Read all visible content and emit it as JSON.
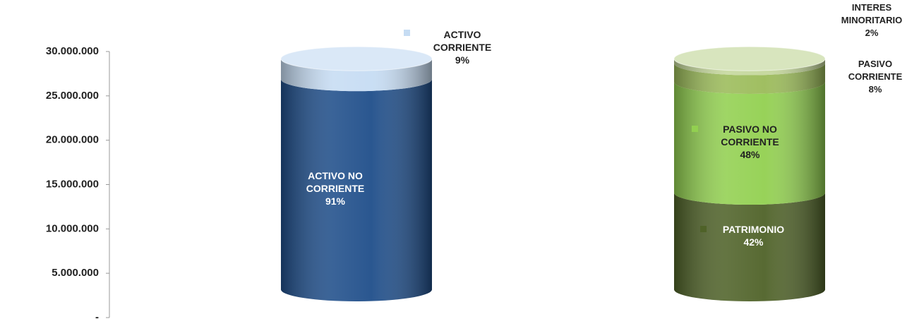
{
  "chart_data": {
    "type": "stacked-cylinder",
    "categories": [
      null,
      null
    ],
    "series": [
      {
        "name": "ACTIVO NO CORRIENTE",
        "percent": "91%",
        "color": "#1f4e8a",
        "values": [
          23700000,
          null
        ]
      },
      {
        "name": "ACTIVO CORRIENTE",
        "percent": "9%",
        "color": "#c6dcf3",
        "values": [
          2300000,
          null
        ]
      },
      {
        "name": "PATRIMONIO",
        "percent": "42%",
        "color": "#4f6228",
        "values": [
          null,
          10900000
        ]
      },
      {
        "name": "PASIVO NO CORRIENTE",
        "percent": "48%",
        "color": "#92d050",
        "values": [
          null,
          12500000
        ]
      },
      {
        "name": "PASIVO CORRIENTE",
        "percent": "8%",
        "color": "#9bbb59",
        "values": [
          null,
          2100000
        ]
      },
      {
        "name": "INTERES MINORITARIO",
        "percent": "2%",
        "color": "#c4d79b",
        "values": [
          null,
          500000
        ]
      }
    ],
    "ylim": [
      0,
      30000000
    ],
    "yticks": [
      {
        "value": 0,
        "label": "-"
      },
      {
        "value": 5000000,
        "label": "5.000.000"
      },
      {
        "value": 10000000,
        "label": "10.000.000"
      },
      {
        "value": 15000000,
        "label": "15.000.000"
      },
      {
        "value": 20000000,
        "label": "20.000.000"
      },
      {
        "value": 25000000,
        "label": "25.000.000"
      },
      {
        "value": 30000000,
        "label": "30.000.000"
      }
    ]
  }
}
